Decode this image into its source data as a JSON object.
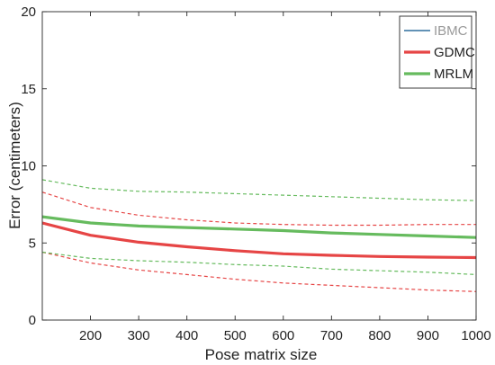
{
  "chart_data": {
    "type": "line",
    "xlabel": "Pose matrix size",
    "ylabel": "Error (centimeters)",
    "xlim": [
      100,
      1000
    ],
    "ylim": [
      0,
      20
    ],
    "x_ticks": [
      200,
      300,
      400,
      500,
      600,
      700,
      800,
      900,
      1000
    ],
    "y_ticks": [
      0,
      5,
      10,
      15,
      20
    ],
    "grid": false,
    "legend_position": "top-right",
    "series": [
      {
        "name": "IBMC",
        "color": "#2e6e9e",
        "style": "solid",
        "x": [],
        "y": []
      },
      {
        "name": "GDMC",
        "color": "#e64545",
        "style": "solid",
        "x": [
          100,
          200,
          300,
          400,
          500,
          600,
          700,
          800,
          900,
          1000
        ],
        "y": [
          6.3,
          5.5,
          5.05,
          4.75,
          4.5,
          4.3,
          4.2,
          4.12,
          4.08,
          4.05
        ],
        "bounds": {
          "style": "dashed",
          "upper": [
            8.3,
            7.3,
            6.8,
            6.5,
            6.3,
            6.2,
            6.15,
            6.15,
            6.2,
            6.2
          ],
          "lower": [
            4.4,
            3.7,
            3.25,
            2.95,
            2.65,
            2.4,
            2.25,
            2.1,
            1.95,
            1.85
          ]
        }
      },
      {
        "name": "MRLM",
        "color": "#66bb5e",
        "style": "solid",
        "x": [
          100,
          200,
          300,
          400,
          500,
          600,
          700,
          800,
          900,
          1000
        ],
        "y": [
          6.7,
          6.3,
          6.1,
          6.0,
          5.9,
          5.8,
          5.65,
          5.55,
          5.45,
          5.35
        ],
        "bounds": {
          "style": "dashed",
          "upper": [
            9.1,
            8.55,
            8.35,
            8.3,
            8.2,
            8.1,
            8.0,
            7.9,
            7.8,
            7.75
          ],
          "lower": [
            4.4,
            4.0,
            3.85,
            3.75,
            3.6,
            3.5,
            3.3,
            3.2,
            3.1,
            2.95
          ]
        }
      }
    ]
  }
}
